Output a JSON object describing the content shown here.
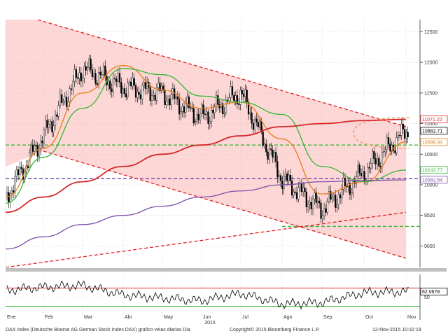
{
  "footer": {
    "description": "DAX Index (Deutsche Boerse AG German Stock Index DAX) grafico velas diarias  Dia",
    "copyright": "Copyright© 2015 Bloomberg Finance L.P.",
    "timestamp": "12-Nov-2015 10:32:19"
  },
  "chart_data": [
    {
      "type": "candlestick",
      "title": "",
      "xlabel": "2015",
      "ylabel": "",
      "x_tick_labels": [
        "Ene",
        "Feb",
        "Mar",
        "Abr",
        "May",
        "Jun",
        "Jul",
        "Ago",
        "Sep",
        "Oct",
        "Nov"
      ],
      "y_tick_labels": [
        9000,
        9500,
        10000,
        10500,
        11000,
        11500,
        12000,
        12500
      ],
      "ylim": [
        8650,
        12700
      ],
      "price_tags": [
        {
          "label": "11071.22",
          "value": 11071.22,
          "color": "#d62728"
        },
        {
          "label": "10882.71",
          "value": 10882.71,
          "color": "#000000"
        },
        {
          "label": "10698.94",
          "value": 10698.94,
          "color": "#e8801a"
        },
        {
          "label": "10242.77",
          "value": 10242.77,
          "color": "#33b833"
        },
        {
          "label": "10082.54",
          "value": 10082.54,
          "color": "#7b4fa8"
        }
      ],
      "price_close_by_month": {
        "x": [
          "Ene",
          "Feb",
          "Mar",
          "Abr",
          "May",
          "Jun",
          "Jul",
          "Ago",
          "Sep",
          "Oct",
          "Nov"
        ],
        "y": [
          9800,
          10800,
          11900,
          11600,
          11500,
          11100,
          11500,
          10100,
          9600,
          10200,
          10880
        ]
      },
      "series": [
        {
          "name": "",
          "color": "#e8801a",
          "x": [
            "Ene",
            "Feb",
            "Mar",
            "Abr",
            "May",
            "Jun",
            "Jul",
            "Ago",
            "Sep",
            "Oct",
            "Nov"
          ],
          "y": [
            9800,
            10600,
            11500,
            11950,
            11550,
            11250,
            11350,
            10750,
            9850,
            10050,
            10700
          ]
        },
        {
          "name": "",
          "color": "#33b833",
          "x": [
            "Ene",
            "Feb",
            "Mar",
            "Abr",
            "May",
            "Jun",
            "Jul",
            "Ago",
            "Sep",
            "Oct",
            "Nov"
          ],
          "y": [
            9700,
            10450,
            11250,
            11900,
            11800,
            11450,
            11350,
            11150,
            10300,
            10050,
            10240
          ]
        },
        {
          "name": "",
          "color": "#d62728",
          "x": [
            "Ene",
            "Feb",
            "Mar",
            "Abr",
            "May",
            "Jun",
            "Jul",
            "Ago",
            "Sep",
            "Oct",
            "Nov"
          ],
          "y": [
            9550,
            9800,
            10050,
            10300,
            10500,
            10650,
            10800,
            10950,
            11000,
            11050,
            11070
          ]
        },
        {
          "name": "",
          "color": "#7b4fa8",
          "x": [
            "Ene",
            "Feb",
            "Mar",
            "Abr",
            "May",
            "Jun",
            "Jul",
            "Ago",
            "Sep",
            "Oct",
            "Nov"
          ],
          "y": [
            8950,
            9150,
            9350,
            9500,
            9650,
            9800,
            9900,
            10000,
            10050,
            10070,
            10080
          ]
        }
      ],
      "trendlines": [
        {
          "color": "#e02020",
          "style": "dashed",
          "from": [
            "Ene",
            12850
          ],
          "to": [
            "Nov",
            10950
          ]
        },
        {
          "color": "#e02020",
          "style": "dashed",
          "from": [
            "Feb",
            10550
          ],
          "to": [
            "Nov",
            8800
          ]
        },
        {
          "color": "#e02020",
          "style": "dashed",
          "from": [
            "Ene",
            8650
          ],
          "to": [
            "Nov",
            9550
          ]
        }
      ],
      "horizontal_levels": [
        {
          "value": 10650,
          "color": "#33b833",
          "style": "dashed"
        },
        {
          "value": 10100,
          "color": "#7b4fa8",
          "style": "dashed"
        },
        {
          "value": 9320,
          "color": "#33b833",
          "style": "dashed",
          "from": "Ago"
        }
      ],
      "grid": true
    },
    {
      "type": "line",
      "title": "",
      "y_tick_labels": [
        50
      ],
      "ylim": [
        0,
        100
      ],
      "price_tags": [
        {
          "label": "62.0678",
          "value": 62.0678,
          "color": "#000000"
        }
      ],
      "reference_levels": [
        {
          "value": 70,
          "color": "#d62728"
        },
        {
          "value": 30,
          "color": "#33b833"
        }
      ],
      "series": [
        {
          "name": "",
          "color": "#000000",
          "x": [
            "Ene",
            "Feb",
            "Mar",
            "Abr",
            "May",
            "Jun",
            "Jul",
            "Ago",
            "Sep",
            "Oct",
            "Nov"
          ],
          "y": [
            65,
            72,
            76,
            55,
            48,
            42,
            58,
            35,
            38,
            60,
            62
          ]
        }
      ]
    }
  ]
}
